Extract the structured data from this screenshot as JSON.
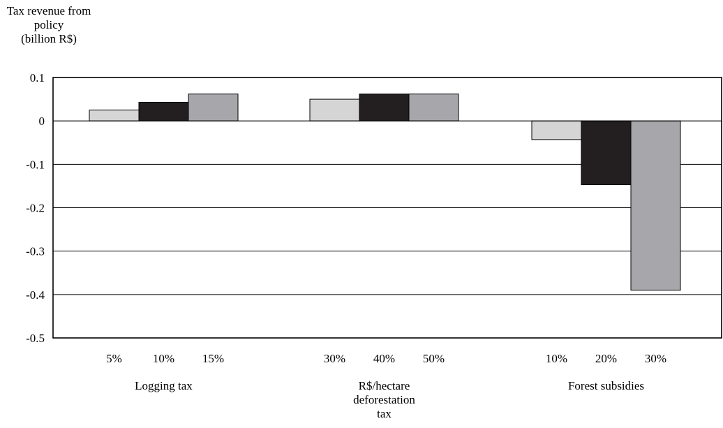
{
  "chart_data": {
    "type": "bar",
    "ylabel": [
      "Tax revenue from",
      "policy",
      "(billion R$)"
    ],
    "ylim": [
      -0.5,
      0.1
    ],
    "yticks": [
      "0.1",
      "0",
      "-0.1",
      "-0.2",
      "-0.3",
      "-0.4",
      "-0.5"
    ],
    "grid": true,
    "groups": [
      {
        "name": [
          "Logging tax"
        ],
        "categories": [
          "5%",
          "10%",
          "15%"
        ],
        "values": [
          0.025,
          0.043,
          0.062
        ]
      },
      {
        "name": [
          "R$/hectare",
          "deforestation",
          "tax"
        ],
        "categories": [
          "30%",
          "40%",
          "50%"
        ],
        "values": [
          0.05,
          0.062,
          0.062
        ]
      },
      {
        "name": [
          "Forest subsidies"
        ],
        "categories": [
          "10%",
          "20%",
          "30%"
        ],
        "values": [
          -0.043,
          -0.147,
          -0.39
        ]
      }
    ],
    "colors": [
      "#d5d5d5",
      "#231f20",
      "#a7a7ab"
    ]
  }
}
